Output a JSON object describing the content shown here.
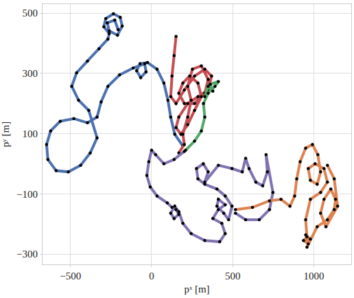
{
  "chart_data": {
    "type": "line",
    "x_label": "pˣ [m]",
    "y_label": "pʸ [m]",
    "xlim": [
      -672,
      1231
    ],
    "ylim": [
      -334,
      530
    ],
    "xticks": [
      -500,
      0,
      500,
      1000
    ],
    "yticks": [
      -300,
      -100,
      100,
      300,
      500
    ],
    "grid": true,
    "marker": "circle",
    "series": [
      {
        "color": "#4c72b0",
        "x": [
          193,
          143,
          118,
          101,
          76,
          34,
          -25,
          -71,
          -92,
          -67,
          -34,
          -42,
          -113,
          -197,
          -269,
          -311,
          -336,
          -395,
          -479,
          -563,
          -622,
          -647,
          -639,
          -588,
          -513,
          -437,
          -378,
          -336,
          -387,
          -450,
          -492,
          -462,
          -395,
          -324,
          -269,
          -261,
          -294,
          -282,
          -235,
          -193,
          -181,
          -210,
          -261,
          -273,
          -227,
          -206
        ],
        "values": [
          59,
          98,
          155,
          211,
          268,
          314,
          336,
          332,
          309,
          286,
          305,
          332,
          318,
          295,
          257,
          205,
          155,
          136,
          150,
          141,
          109,
          64,
          14,
          -23,
          -27,
          -5,
          36,
          86,
          177,
          211,
          257,
          302,
          341,
          382,
          414,
          432,
          455,
          482,
          498,
          486,
          457,
          427,
          441,
          468,
          477,
          445
        ]
      },
      {
        "color": "#c44e52",
        "x": [
          151,
          139,
          126,
          118,
          151,
          202,
          265,
          328,
          370,
          349,
          286,
          223,
          168,
          151,
          181,
          223,
          265,
          307,
          286,
          235,
          193,
          168,
          202,
          265,
          328,
          349,
          307,
          252,
          223,
          244,
          223,
          193,
          202,
          168
        ],
        "values": [
          423,
          359,
          291,
          223,
          200,
          245,
          291,
          314,
          291,
          245,
          223,
          200,
          155,
          120,
          98,
          130,
          177,
          223,
          268,
          291,
          268,
          234,
          200,
          200,
          234,
          280,
          325,
          314,
          257,
          211,
          155,
          98,
          64,
          36
        ]
      },
      {
        "color": "#55a868",
        "x": [
          210,
          265,
          307,
          328,
          320,
          349,
          391,
          412,
          362,
          378,
          349,
          328
        ],
        "values": [
          45,
          75,
          109,
          155,
          200,
          234,
          257,
          273,
          264,
          241,
          257,
          223
        ]
      },
      {
        "color": "#8172b2",
        "x": [
          202,
          139,
          76,
          25,
          0,
          -17,
          -29,
          -8,
          34,
          97,
          126,
          151,
          168,
          139,
          118,
          143,
          168,
          193,
          244,
          328,
          420,
          454,
          433,
          378,
          412,
          454,
          412,
          403,
          445,
          475,
          496,
          454,
          403,
          328,
          286,
          277,
          319,
          349,
          328,
          412,
          496,
          559,
          580,
          601,
          643,
          685,
          714,
          706,
          748,
          727,
          664,
          580,
          517
        ],
        "values": [
          41,
          14,
          0,
          30,
          45,
          7,
          -39,
          -77,
          -107,
          -130,
          -145,
          -152,
          -168,
          -182,
          -164,
          -141,
          -159,
          -198,
          -232,
          -255,
          -259,
          -232,
          -198,
          -182,
          -152,
          -136,
          -118,
          -141,
          -164,
          -186,
          -141,
          -107,
          -84,
          -68,
          -50,
          -16,
          0,
          -27,
          -61,
          -5,
          -16,
          -27,
          18,
          -16,
          -61,
          -73,
          -27,
          30,
          -95,
          -152,
          -186,
          -186,
          -164
        ]
      },
      {
        "color": "#dd8452",
        "x": [
          517,
          622,
          727,
          798,
          853,
          882,
          895,
          916,
          950,
          992,
          1025,
          1042,
          1021,
          979,
          966,
          1008,
          1063,
          1084,
          1042,
          979,
          950,
          958,
          937,
          966,
          950,
          979,
          958,
          1021,
          1084,
          1126,
          1134,
          1105,
          1063,
          1042,
          1075,
          1147,
          1126,
          1084
        ],
        "values": [
          -152,
          -145,
          -123,
          -118,
          -141,
          -107,
          -50,
          7,
          52,
          64,
          30,
          -27,
          -68,
          -55,
          -16,
          0,
          -16,
          -61,
          -95,
          -118,
          -186,
          -243,
          -255,
          -266,
          -236,
          -250,
          -277,
          -209,
          -186,
          -152,
          -118,
          -84,
          -118,
          -164,
          -209,
          -141,
          -50,
          -5
        ]
      }
    ]
  }
}
